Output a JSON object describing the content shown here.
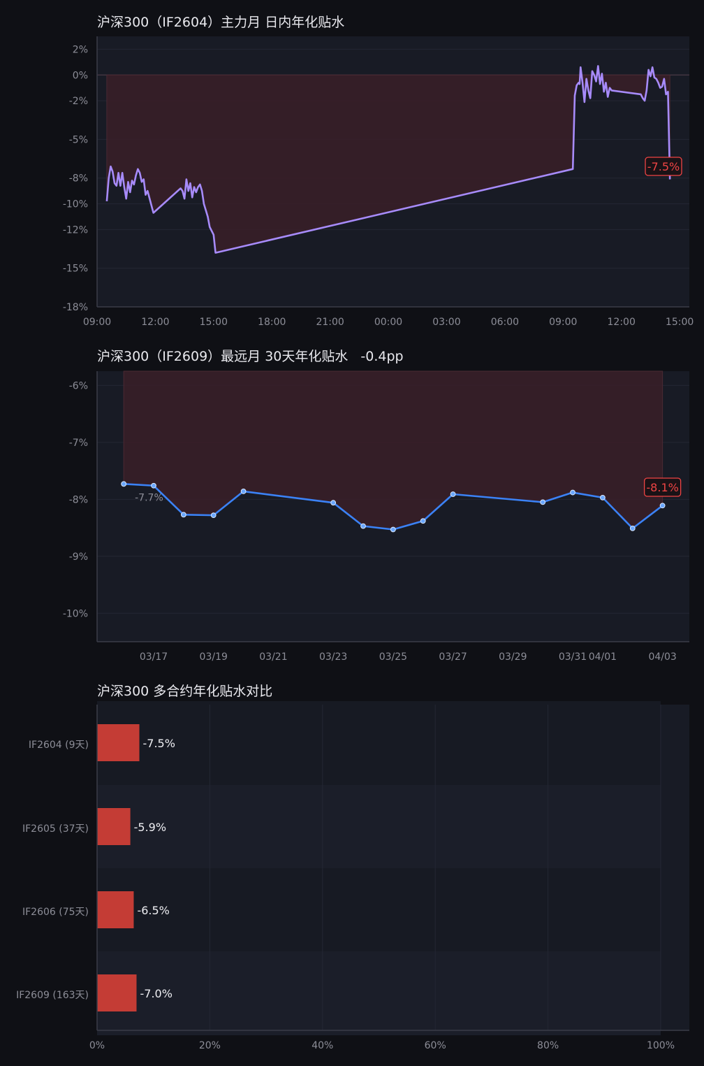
{
  "colors": {
    "background": "#0f1015",
    "plot_background": "#181b25",
    "series_intraday": "#a78bfa",
    "series_daily": "#3b82f6",
    "negative": "#ef4444",
    "bar": "#c43c35",
    "shade": "#3a1f28"
  },
  "chart_data": [
    {
      "type": "line",
      "title": "沪深300（IF2604）主力月 日内年化贴水",
      "x_ticks": [
        "09:00",
        "12:00",
        "15:00",
        "18:00",
        "21:00",
        "00:00",
        "03:00",
        "06:00",
        "09:00",
        "12:00",
        "15:00"
      ],
      "y_ticks": [
        "2%",
        "0%",
        "-2%",
        "-5%",
        "-8%",
        "-10%",
        "-12%",
        "-15%",
        "-18%"
      ],
      "ylim": [
        -18,
        3
      ],
      "x_unit": "hours since 09:00 (day 1)",
      "series": [
        {
          "points": [
            [
              0.5,
              -9.8
            ],
            [
              0.6,
              -8.0
            ],
            [
              0.7,
              -7.1
            ],
            [
              0.8,
              -7.5
            ],
            [
              0.9,
              -8.4
            ],
            [
              1.0,
              -8.6
            ],
            [
              1.1,
              -7.6
            ],
            [
              1.2,
              -8.6
            ],
            [
              1.3,
              -7.6
            ],
            [
              1.4,
              -8.7
            ],
            [
              1.5,
              -9.6
            ],
            [
              1.6,
              -8.3
            ],
            [
              1.7,
              -9.1
            ],
            [
              1.8,
              -8.2
            ],
            [
              1.9,
              -8.5
            ],
            [
              2.0,
              -7.8
            ],
            [
              2.1,
              -7.3
            ],
            [
              2.2,
              -7.6
            ],
            [
              2.3,
              -8.3
            ],
            [
              2.4,
              -8.1
            ],
            [
              2.5,
              -9.3
            ],
            [
              2.6,
              -9.0
            ],
            [
              2.9,
              -10.7
            ],
            [
              4.3,
              -8.8
            ],
            [
              4.4,
              -9.0
            ],
            [
              4.5,
              -9.6
            ],
            [
              4.6,
              -8.1
            ],
            [
              4.7,
              -9.0
            ],
            [
              4.8,
              -8.4
            ],
            [
              4.9,
              -9.5
            ],
            [
              5.0,
              -8.7
            ],
            [
              5.1,
              -9.1
            ],
            [
              5.2,
              -8.7
            ],
            [
              5.3,
              -8.5
            ],
            [
              5.4,
              -9.0
            ],
            [
              5.5,
              -10.0
            ],
            [
              5.6,
              -10.5
            ],
            [
              5.7,
              -11.0
            ],
            [
              5.8,
              -11.8
            ],
            [
              6.0,
              -12.4
            ],
            [
              6.1,
              -13.8
            ],
            [
              24.5,
              -7.3
            ],
            [
              24.6,
              -1.6
            ],
            [
              24.7,
              -0.8
            ],
            [
              24.8,
              -0.6
            ],
            [
              24.85,
              -0.7
            ],
            [
              24.9,
              0.6
            ],
            [
              25.0,
              -0.6
            ],
            [
              25.1,
              -2.1
            ],
            [
              25.2,
              -0.3
            ],
            [
              25.3,
              -1.2
            ],
            [
              25.4,
              -1.8
            ],
            [
              25.5,
              0.3
            ],
            [
              25.6,
              0.0
            ],
            [
              25.7,
              -0.5
            ],
            [
              25.8,
              0.7
            ],
            [
              25.9,
              -0.7
            ],
            [
              26.0,
              0.1
            ],
            [
              26.1,
              -1.3
            ],
            [
              26.2,
              -0.6
            ],
            [
              26.3,
              -1.7
            ],
            [
              26.4,
              -1.0
            ],
            [
              26.5,
              -1.2
            ],
            [
              28.0,
              -1.5
            ],
            [
              28.1,
              -1.8
            ],
            [
              28.2,
              -2.0
            ],
            [
              28.3,
              -1.2
            ],
            [
              28.4,
              0.4
            ],
            [
              28.5,
              -0.1
            ],
            [
              28.6,
              0.6
            ],
            [
              28.7,
              -0.2
            ],
            [
              28.8,
              -0.3
            ],
            [
              28.9,
              -0.6
            ],
            [
              29.0,
              -1.0
            ],
            [
              29.1,
              -0.9
            ],
            [
              29.2,
              -0.3
            ],
            [
              29.3,
              -1.5
            ],
            [
              29.4,
              -1.3
            ],
            [
              29.5,
              -8.1
            ]
          ]
        }
      ],
      "annotation": "-7.5%"
    },
    {
      "type": "line",
      "title": "沪深300（IF2609）最远月 30天年化贴水",
      "title_extra": "-0.4pp",
      "x_ticks": [
        "03/17",
        "03/19",
        "03/21",
        "03/23",
        "03/25",
        "03/27",
        "03/29",
        "03/31",
        "04/01",
        "04/03"
      ],
      "y_ticks": [
        "-6%",
        "-7%",
        "-8%",
        "-9%",
        "-10%"
      ],
      "ylim": [
        -10.5,
        -5.75
      ],
      "series": [
        {
          "x": [
            "03/16",
            "03/17",
            "03/18",
            "03/19",
            "03/20",
            "03/23",
            "03/24",
            "03/25",
            "03/26",
            "03/27",
            "03/30",
            "03/31",
            "04/01",
            "04/02",
            "04/03"
          ],
          "values": [
            -7.73,
            -7.76,
            -8.27,
            -8.28,
            -7.86,
            -8.06,
            -8.47,
            -8.53,
            -8.38,
            -7.91,
            -8.05,
            -7.88,
            -7.97,
            -8.51,
            -8.11
          ]
        }
      ],
      "start_label": "-7.7%",
      "annotation": "-8.1%"
    },
    {
      "type": "bar",
      "orientation": "horizontal",
      "title": "沪深300 多合约年化贴水对比",
      "categories": [
        "IF2604 (9天)",
        "IF2605 (37天)",
        "IF2606 (75天)",
        "IF2609 (163天)"
      ],
      "values": [
        -7.5,
        -5.9,
        -6.5,
        -7.0
      ],
      "value_labels": [
        "-7.5%",
        "-5.9%",
        "-6.5%",
        "-7.0%"
      ],
      "x_ticks": [
        "0%",
        "20%",
        "40%",
        "60%",
        "80%",
        "100%"
      ],
      "xlim": [
        0,
        100
      ]
    }
  ]
}
